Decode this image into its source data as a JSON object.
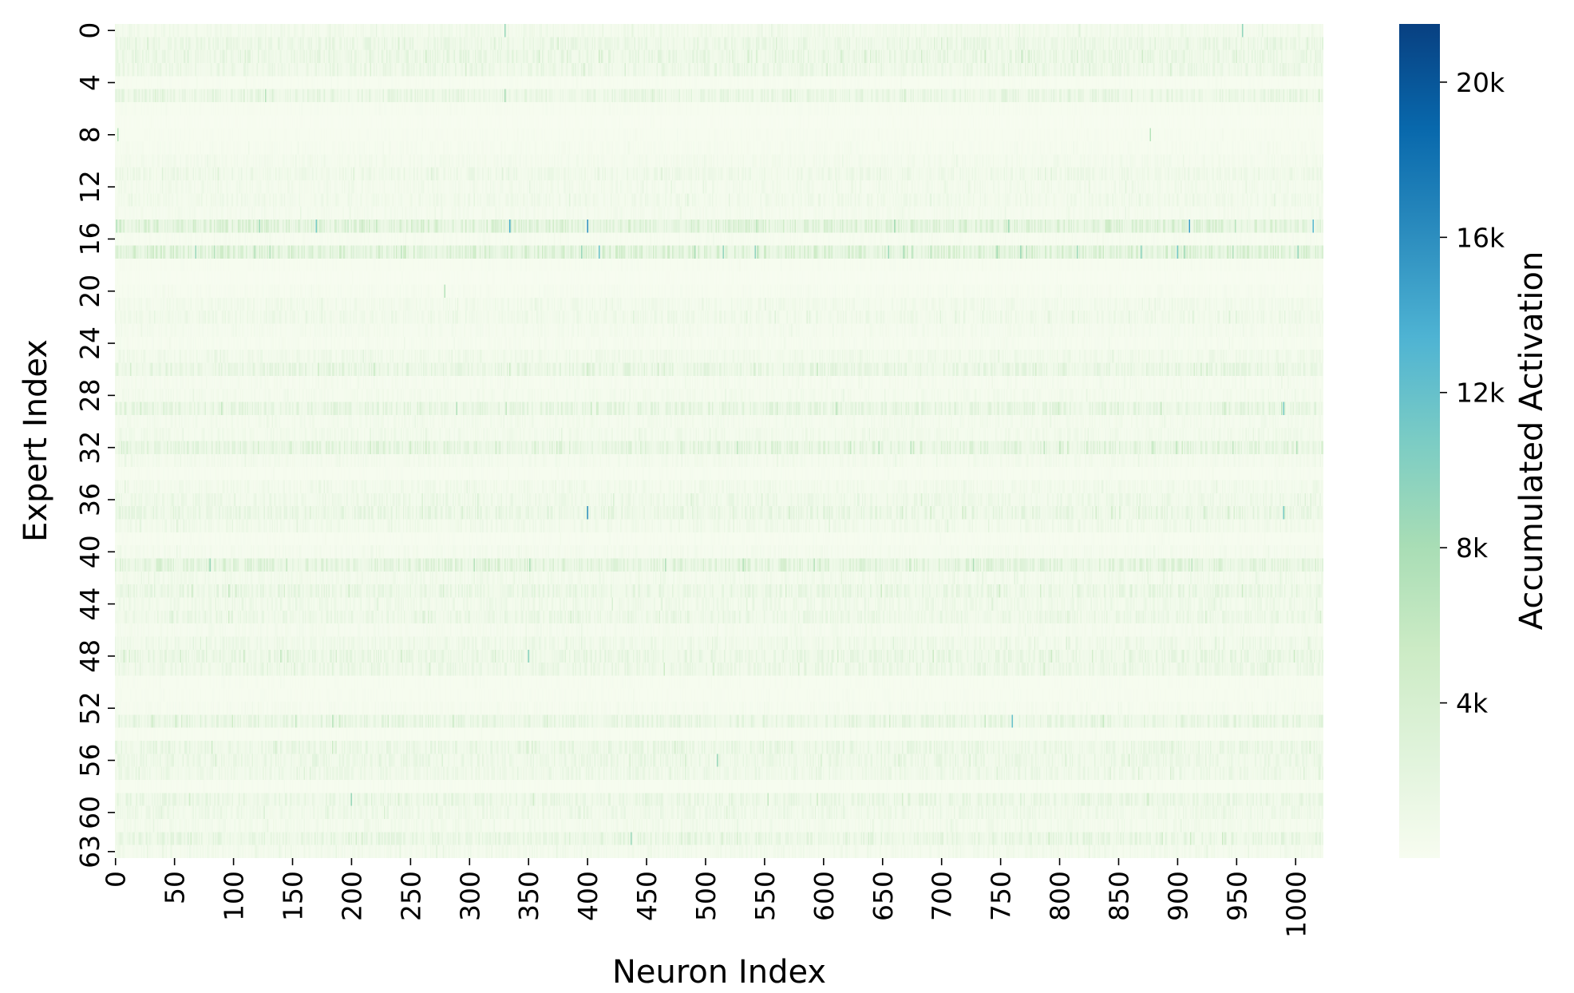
{
  "chart_data": {
    "type": "heatmap",
    "title": "",
    "xlabel": "Neuron Index",
    "ylabel": "Expert Index",
    "colorbar_label": "Accumulated Activation",
    "colormap": "GnBu",
    "colormap_stops": [
      "#f7fcf0",
      "#e0f3db",
      "#ccebc5",
      "#a8ddb5",
      "#7bccc4",
      "#4eb3d3",
      "#2b8cbe",
      "#0868ac",
      "#084081"
    ],
    "x_range": [
      0,
      1023
    ],
    "y_range": [
      0,
      63
    ],
    "n_neurons": 1024,
    "n_experts": 64,
    "x_ticks": [
      0,
      50,
      100,
      150,
      200,
      250,
      300,
      350,
      400,
      450,
      500,
      550,
      600,
      650,
      700,
      750,
      800,
      850,
      900,
      950,
      1000
    ],
    "x_tick_labels": [
      "0",
      "50",
      "100",
      "150",
      "200",
      "250",
      "300",
      "350",
      "400",
      "450",
      "500",
      "550",
      "600",
      "650",
      "700",
      "750",
      "800",
      "850",
      "900",
      "950",
      "1000"
    ],
    "y_ticks": [
      0,
      4,
      8,
      12,
      16,
      20,
      24,
      28,
      32,
      36,
      40,
      44,
      48,
      52,
      56,
      60,
      63
    ],
    "y_tick_labels": [
      "0",
      "4",
      "8",
      "12",
      "16",
      "20",
      "24",
      "28",
      "32",
      "36",
      "40",
      "44",
      "48",
      "52",
      "56",
      "60",
      "63"
    ],
    "vmin": 0,
    "vmax": 21500,
    "colorbar_ticks": [
      4000,
      8000,
      12000,
      16000,
      20000
    ],
    "colorbar_tick_labels": [
      "4k",
      "8k",
      "12k",
      "16k",
      "20k"
    ],
    "expert_mean_activation": [
      800,
      1500,
      1700,
      1400,
      200,
      1700,
      200,
      100,
      200,
      300,
      600,
      1100,
      700,
      900,
      500,
      3000,
      300,
      3200,
      200,
      100,
      300,
      800,
      1000,
      500,
      300,
      900,
      1900,
      400,
      600,
      2000,
      600,
      800,
      2300,
      600,
      200,
      800,
      1200,
      1700,
      900,
      200,
      500,
      2600,
      800,
      1700,
      1000,
      1400,
      500,
      1100,
      1700,
      1400,
      200,
      200,
      400,
      1900,
      200,
      1600,
      1400,
      1200,
      200,
      1600,
      1100,
      700,
      1800,
      700
    ],
    "notable_hotspots": [
      {
        "expert": 0,
        "neuron": 330,
        "value": 9000
      },
      {
        "expert": 0,
        "neuron": 955,
        "value": 9500
      },
      {
        "expert": 5,
        "neuron": 127,
        "value": 7000
      },
      {
        "expert": 5,
        "neuron": 330,
        "value": 8000
      },
      {
        "expert": 8,
        "neuron": 2,
        "value": 7000
      },
      {
        "expert": 8,
        "neuron": 877,
        "value": 7000
      },
      {
        "expert": 15,
        "neuron": 334,
        "value": 14000
      },
      {
        "expert": 15,
        "neuron": 400,
        "value": 16000
      },
      {
        "expert": 15,
        "neuron": 910,
        "value": 15000
      },
      {
        "expert": 15,
        "neuron": 1015,
        "value": 13000
      },
      {
        "expert": 15,
        "neuron": 170,
        "value": 11000
      },
      {
        "expert": 17,
        "neuron": 68,
        "value": 9000
      },
      {
        "expert": 17,
        "neuron": 410,
        "value": 12000
      },
      {
        "expert": 20,
        "neuron": 279,
        "value": 7000
      },
      {
        "expert": 29,
        "neuron": 990,
        "value": 11000
      },
      {
        "expert": 37,
        "neuron": 400,
        "value": 16000
      },
      {
        "expert": 37,
        "neuron": 990,
        "value": 11000
      },
      {
        "expert": 41,
        "neuron": 80,
        "value": 9000
      },
      {
        "expert": 48,
        "neuron": 350,
        "value": 10000
      },
      {
        "expert": 53,
        "neuron": 760,
        "value": 12000
      },
      {
        "expert": 56,
        "neuron": 510,
        "value": 9000
      },
      {
        "expert": 59,
        "neuron": 200,
        "value": 9000
      },
      {
        "expert": 62,
        "neuron": 437,
        "value": 9000
      }
    ]
  }
}
